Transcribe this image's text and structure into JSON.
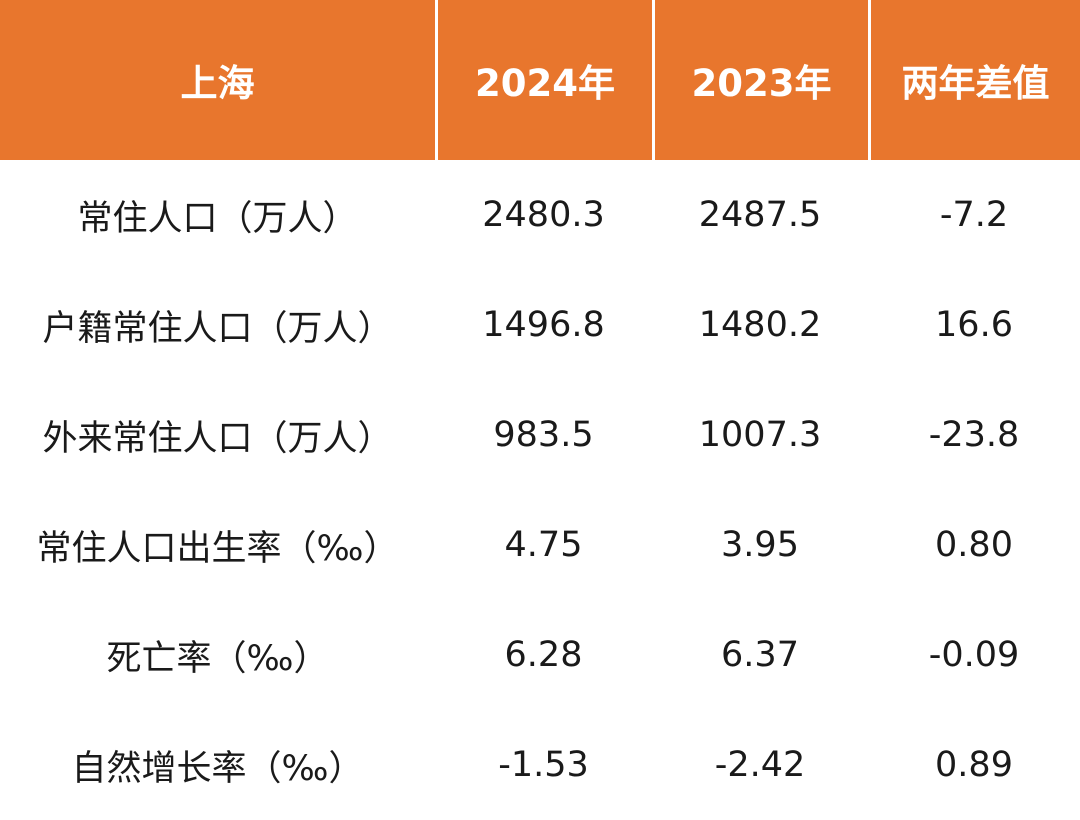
{
  "table": {
    "header": [
      "上海",
      "2024年",
      "2023年",
      "两年差值"
    ],
    "rows": [
      [
        "常住人口（万人）",
        "2480.3",
        "2487.5",
        "-7.2"
      ],
      [
        "户籍常住人口（万人）",
        "1496.8",
        "1480.2",
        "16.6"
      ],
      [
        "外来常住人口（万人）",
        "983.5",
        "1007.3",
        "-23.8"
      ],
      [
        "常住人口出生率（‰）",
        "4.75",
        "3.95",
        "0.80"
      ],
      [
        "死亡率（‰）",
        "6.28",
        "6.37",
        "-0.09"
      ],
      [
        "自然增长率（‰）",
        "-1.53",
        "-2.42",
        "0.89"
      ]
    ]
  }
}
